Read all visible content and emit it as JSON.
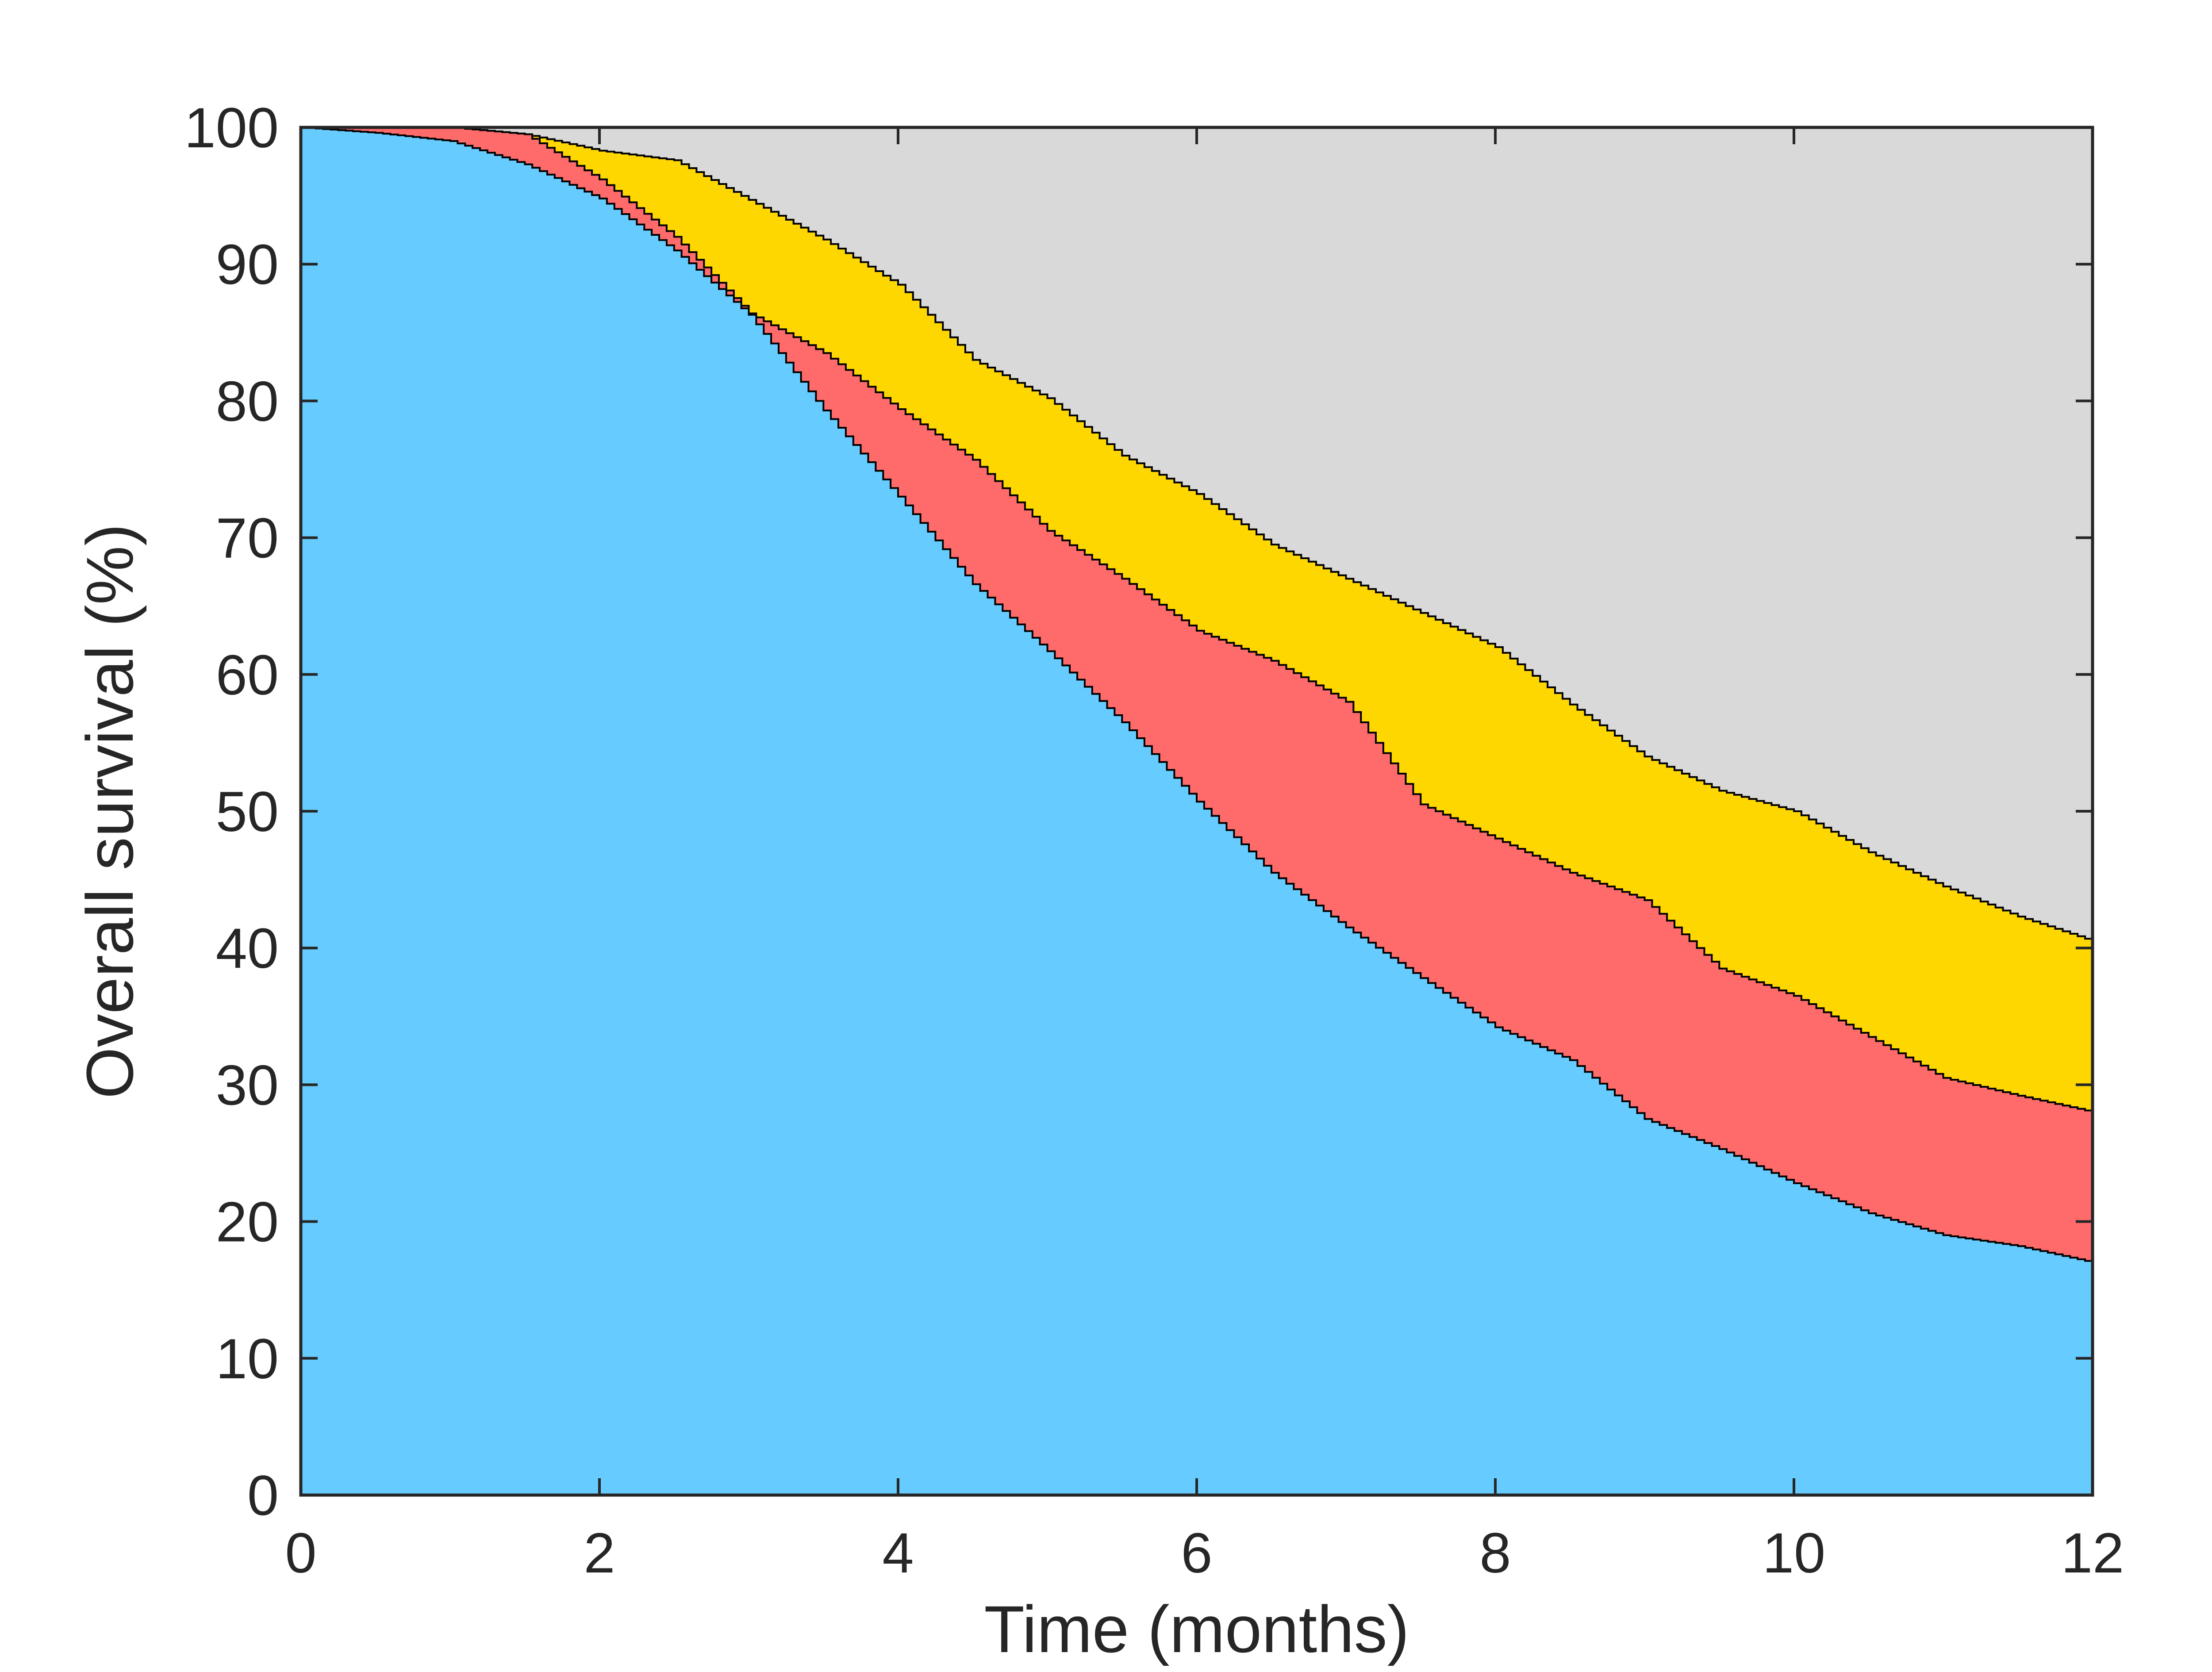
{
  "chart_data": {
    "type": "area",
    "title": "",
    "xlabel": "Time (months)",
    "ylabel": "Overall survival (%)",
    "xlim": [
      0,
      12
    ],
    "ylim": [
      0,
      100
    ],
    "xticks": [
      "0",
      "2",
      "4",
      "6",
      "8",
      "10",
      "12"
    ],
    "yticks": [
      "0",
      "10",
      "20",
      "30",
      "40",
      "50",
      "60",
      "70",
      "80",
      "90",
      "100"
    ],
    "grid": false,
    "legend": "none",
    "background_color": "#D9D9D9",
    "x": [
      0,
      0.5,
      1,
      1.5,
      2,
      2.5,
      3,
      3.5,
      4,
      4.5,
      5,
      5.5,
      6,
      6.5,
      7,
      7.5,
      8,
      8.5,
      9,
      9.5,
      10,
      10.5,
      11,
      11.5,
      12
    ],
    "series": [
      {
        "color": "#66CCFF",
        "values": [
          100,
          99.6,
          99.0,
          97.3,
          94.8,
          91.0,
          86.3,
          79.3,
          73.0,
          66.6,
          61.7,
          56.5,
          50.7,
          45.5,
          41.5,
          37.8,
          34.2,
          31.8,
          27.5,
          25.3,
          22.8,
          20.6,
          19.0,
          18.2,
          17.0
        ]
      },
      {
        "color": "#FF6B6B",
        "values": [
          100,
          100,
          100,
          99.5,
          96.2,
          92.0,
          86.4,
          83.5,
          79.4,
          75.7,
          70.5,
          67.0,
          63.2,
          61.0,
          58.0,
          50.5,
          48.0,
          45.5,
          43.5,
          38.5,
          36.5,
          33.5,
          30.5,
          29.2,
          28.0
        ]
      },
      {
        "color": "#FFD700",
        "values": [
          100,
          100,
          100,
          99.5,
          98.3,
          97.6,
          94.7,
          91.8,
          88.5,
          83.0,
          80.2,
          76.0,
          73.2,
          69.5,
          67.0,
          64.5,
          62.0,
          57.8,
          54.0,
          51.5,
          50.0,
          47.0,
          44.5,
          42.3,
          40.5
        ]
      }
    ]
  }
}
